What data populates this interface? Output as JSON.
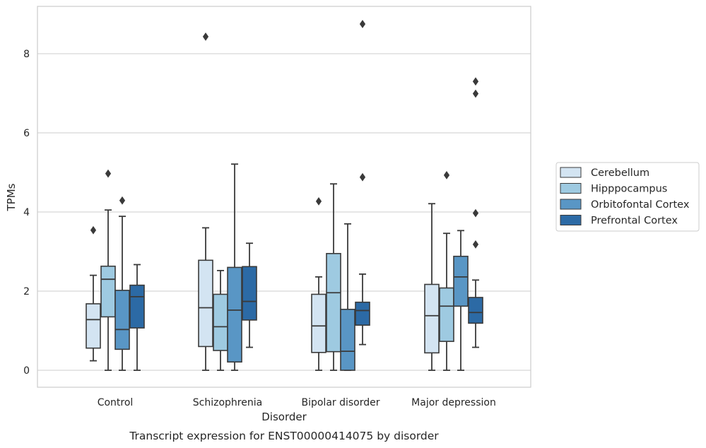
{
  "caption": "Transcript expression for ENST00000414075 by disorder",
  "chart_data": {
    "type": "box",
    "xlabel": "Disorder",
    "ylabel": "TPMs",
    "categories": [
      "Control",
      "Schizophrenia",
      "Bipolar disorder",
      "Major depression"
    ],
    "ylim": [
      -0.42,
      9.3
    ],
    "yticks": [
      "0",
      "2",
      "4",
      "6",
      "8"
    ],
    "ytick_values": [
      0,
      2,
      4,
      6,
      8
    ],
    "grid": true,
    "legend_position": "right",
    "series": [
      {
        "name": "Cerebellum",
        "color": "#d3e4f2",
        "boxes": [
          {
            "whislo": 0.24,
            "q1": 0.56,
            "med": 1.28,
            "q3": 1.68,
            "whishi": 2.4,
            "fliers": [
              3.54
            ]
          },
          {
            "whislo": 0.0,
            "q1": 0.6,
            "med": 1.58,
            "q3": 2.78,
            "whishi": 3.6,
            "fliers": [
              8.43
            ]
          },
          {
            "whislo": 0.0,
            "q1": 0.45,
            "med": 1.12,
            "q3": 1.92,
            "whishi": 2.36,
            "fliers": [
              4.27
            ]
          },
          {
            "whislo": 0.0,
            "q1": 0.44,
            "med": 1.38,
            "q3": 2.17,
            "whishi": 4.21,
            "fliers": []
          }
        ]
      },
      {
        "name": "Hipppocampus",
        "color": "#9ecae1",
        "boxes": [
          {
            "whislo": 0.0,
            "q1": 1.35,
            "med": 2.3,
            "q3": 2.63,
            "whishi": 4.05,
            "fliers": [
              4.97
            ]
          },
          {
            "whislo": 0.0,
            "q1": 0.5,
            "med": 1.1,
            "q3": 1.92,
            "whishi": 2.52,
            "fliers": []
          },
          {
            "whislo": 0.0,
            "q1": 0.47,
            "med": 1.96,
            "q3": 2.95,
            "whishi": 4.71,
            "fliers": []
          },
          {
            "whislo": 0.0,
            "q1": 0.73,
            "med": 1.62,
            "q3": 2.08,
            "whishi": 3.46,
            "fliers": [
              4.93
            ]
          }
        ]
      },
      {
        "name": "Orbitofontal Cortex",
        "color": "#5996c5",
        "boxes": [
          {
            "whislo": 0.0,
            "q1": 0.53,
            "med": 1.03,
            "q3": 2.02,
            "whishi": 3.89,
            "fliers": [
              4.29
            ]
          },
          {
            "whislo": 0.0,
            "q1": 0.21,
            "med": 1.52,
            "q3": 2.6,
            "whishi": 5.21,
            "fliers": []
          },
          {
            "whislo": 0.0,
            "q1": 0.0,
            "med": 0.48,
            "q3": 1.54,
            "whishi": 3.7,
            "fliers": []
          },
          {
            "whislo": 0.0,
            "q1": 1.62,
            "med": 2.36,
            "q3": 2.88,
            "whishi": 3.53,
            "fliers": []
          }
        ]
      },
      {
        "name": "Prefrontal Cortex",
        "color": "#2c6aa5",
        "boxes": [
          {
            "whislo": 0.0,
            "q1": 1.07,
            "med": 1.86,
            "q3": 2.15,
            "whishi": 2.67,
            "fliers": []
          },
          {
            "whislo": 0.58,
            "q1": 1.27,
            "med": 1.74,
            "q3": 2.62,
            "whishi": 3.21,
            "fliers": []
          },
          {
            "whislo": 0.65,
            "q1": 1.14,
            "med": 1.51,
            "q3": 1.72,
            "whishi": 2.43,
            "fliers": [
              4.88,
              8.75
            ]
          },
          {
            "whislo": 0.58,
            "q1": 1.19,
            "med": 1.46,
            "q3": 1.84,
            "whishi": 2.28,
            "fliers": [
              3.18,
              3.97,
              6.99,
              7.3
            ]
          }
        ]
      }
    ]
  }
}
